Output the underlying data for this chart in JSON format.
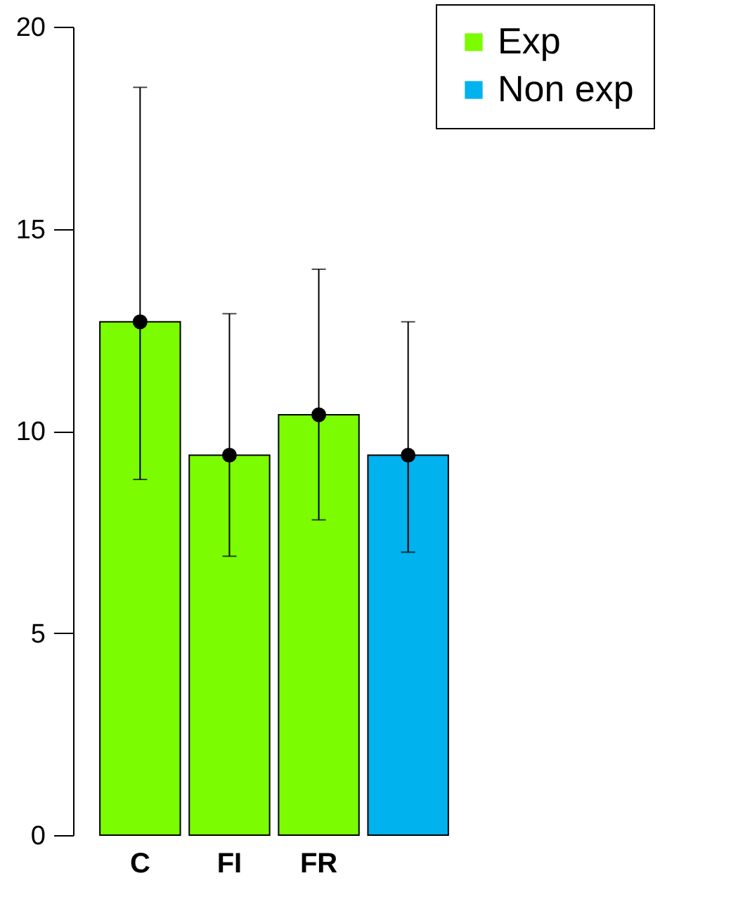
{
  "chart_data": {
    "type": "bar",
    "categories": [
      "C",
      "FI",
      "FR",
      null
    ],
    "series": [
      {
        "name": "Exp",
        "color": "#7cfc00",
        "values": [
          12.7,
          9.4,
          10.4,
          null
        ],
        "errors": [
          [
            8.8,
            18.5
          ],
          [
            6.9,
            12.9
          ],
          [
            7.8,
            14.0
          ],
          null
        ]
      },
      {
        "name": "Non exp",
        "color": "#00b2ee",
        "values": [
          null,
          null,
          null,
          9.4
        ],
        "errors": [
          null,
          null,
          null,
          [
            7.0,
            12.7
          ]
        ]
      },
      {
        "type": "scatter",
        "color": "#000000",
        "values": [
          12.7,
          9.4,
          10.4,
          9.4
        ],
        "marker": "circle"
      }
    ],
    "ylim": [
      0,
      20
    ],
    "yticks": [
      0,
      5,
      10,
      15,
      20
    ],
    "grid": false,
    "legend": "top right"
  }
}
